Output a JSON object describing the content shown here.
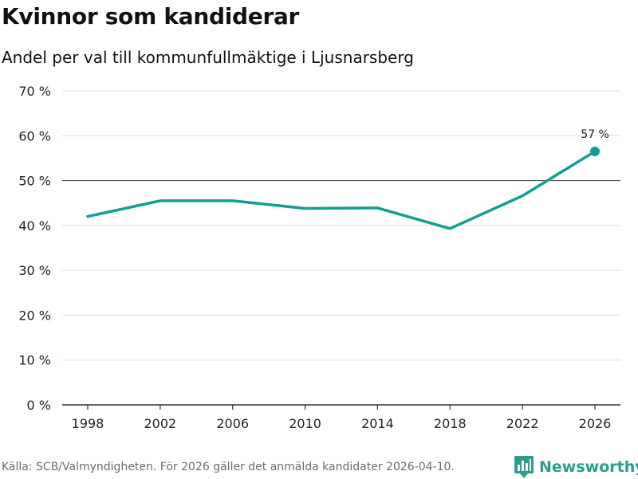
{
  "title": "Kvinnor som kandiderar",
  "subtitle": "Andel per val till kommunfullmäktige i Ljusnarsberg",
  "footer": "Källa: SCB/Valmyndigheten. För 2026 gäller det anmälda kandidater 2026-04-10.",
  "brand": "Newsworthy",
  "colors": {
    "line": "#129e92",
    "grid": "#dddddd",
    "refline": "#555555",
    "axis": "#333333",
    "brand": "#2a9d8f"
  },
  "chart_data": {
    "type": "line",
    "title": "Kvinnor som kandiderar",
    "subtitle": "Andel per val till kommunfullmäktige i Ljusnarsberg",
    "xlabel": "",
    "ylabel": "",
    "x": [
      1998,
      2002,
      2006,
      2010,
      2014,
      2018,
      2022,
      2026
    ],
    "values": [
      42.0,
      45.5,
      45.5,
      43.8,
      43.9,
      39.3,
      46.6,
      56.5
    ],
    "ylim": [
      0,
      70
    ],
    "yticks": [
      0,
      10,
      20,
      30,
      40,
      50,
      60,
      70
    ],
    "ytick_labels": [
      "0 %",
      "10 %",
      "20 %",
      "30 %",
      "40 %",
      "50 %",
      "60 %",
      "70 %"
    ],
    "xtick_labels": [
      "1998",
      "2002",
      "2006",
      "2010",
      "2014",
      "2018",
      "2022",
      "2026"
    ],
    "reference_line": 50,
    "end_label": "57 %",
    "grid": true
  }
}
